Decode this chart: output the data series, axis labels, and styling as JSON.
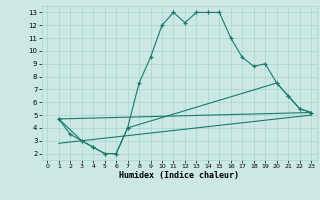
{
  "title": "",
  "xlabel": "Humidex (Indice chaleur)",
  "bg_color": "#cce8e4",
  "grid_color": "#aad4cc",
  "line_color": "#1a7a6e",
  "xlim": [
    -0.5,
    23.5
  ],
  "ylim": [
    1.5,
    13.5
  ],
  "xticks": [
    0,
    1,
    2,
    3,
    4,
    5,
    6,
    7,
    8,
    9,
    10,
    11,
    12,
    13,
    14,
    15,
    16,
    17,
    18,
    19,
    20,
    21,
    22,
    23
  ],
  "yticks": [
    2,
    3,
    4,
    5,
    6,
    7,
    8,
    9,
    10,
    11,
    12,
    13
  ],
  "line1_x": [
    1,
    2,
    3,
    4,
    5,
    6,
    7,
    8,
    9,
    10,
    11,
    12,
    13,
    14,
    15,
    16,
    17,
    18,
    19,
    20,
    21,
    22,
    23
  ],
  "line1_y": [
    4.7,
    3.5,
    3.0,
    2.5,
    2.0,
    2.0,
    4.0,
    7.5,
    9.5,
    12.0,
    13.0,
    12.2,
    13.0,
    13.0,
    13.0,
    11.0,
    9.5,
    8.8,
    9.0,
    7.5,
    6.5,
    5.5,
    5.2
  ],
  "line2_x": [
    1,
    3,
    4,
    5,
    6,
    7,
    20,
    21,
    22,
    23
  ],
  "line2_y": [
    4.7,
    3.0,
    2.5,
    2.0,
    2.0,
    4.0,
    7.5,
    6.5,
    5.5,
    5.2
  ],
  "line3_x": [
    1,
    23
  ],
  "line3_y": [
    4.7,
    5.2
  ],
  "line4_x": [
    1,
    23
  ],
  "line4_y": [
    2.8,
    5.0
  ]
}
